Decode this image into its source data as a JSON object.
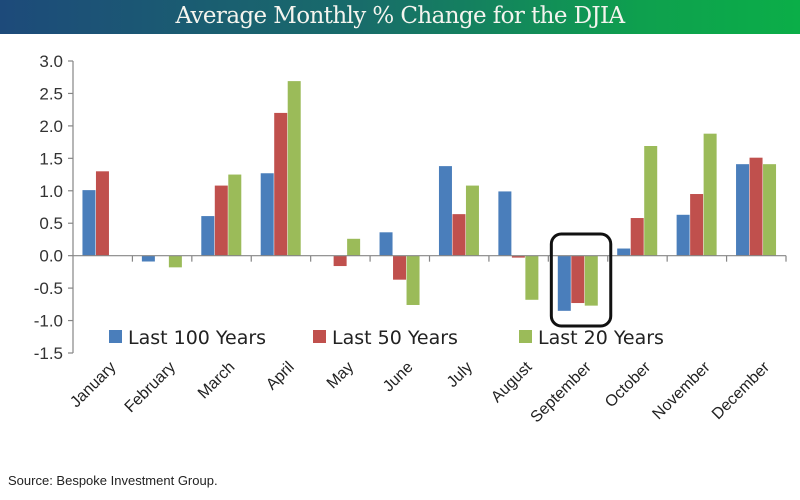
{
  "header": {
    "title": "Average Monthly % Change for the DJIA"
  },
  "source": "Source: Bespoke Investment Group.",
  "chart_data": {
    "type": "bar",
    "title": "Average Monthly % Change for the DJIA",
    "xlabel": "",
    "ylabel": "",
    "ylim": [
      -1.5,
      3.0
    ],
    "yticks": [
      "3.0",
      "2.5",
      "2.0",
      "1.5",
      "1.0",
      "0.5",
      "0.0",
      "-0.5",
      "-1.0",
      "-1.5"
    ],
    "ytick_values": [
      3.0,
      2.5,
      2.0,
      1.5,
      1.0,
      0.5,
      0.0,
      -0.5,
      -1.0,
      -1.5
    ],
    "grid": false,
    "legend_position": "bottom-left inside plot",
    "categories": [
      "January",
      "February",
      "March",
      "April",
      "May",
      "June",
      "July",
      "August",
      "September",
      "October",
      "November",
      "December"
    ],
    "series": [
      {
        "name": "Last 100 Years",
        "color": "#4a7ebb",
        "values": [
          1.01,
          -0.09,
          0.61,
          1.27,
          0.0,
          0.36,
          1.38,
          0.99,
          -0.85,
          0.11,
          0.63,
          1.41
        ]
      },
      {
        "name": "Last 50 Years",
        "color": "#c0504d",
        "values": [
          1.3,
          0.0,
          1.08,
          2.2,
          -0.16,
          -0.37,
          0.64,
          -0.03,
          -0.73,
          0.58,
          0.95,
          1.51
        ]
      },
      {
        "name": "Last 20 Years",
        "color": "#9bbb59",
        "values": [
          0.0,
          -0.18,
          1.25,
          2.69,
          0.26,
          -0.76,
          1.08,
          -0.68,
          -0.77,
          1.69,
          1.88,
          1.41
        ]
      }
    ],
    "annotations": [
      {
        "type": "highlight-box",
        "category": "September"
      }
    ]
  }
}
